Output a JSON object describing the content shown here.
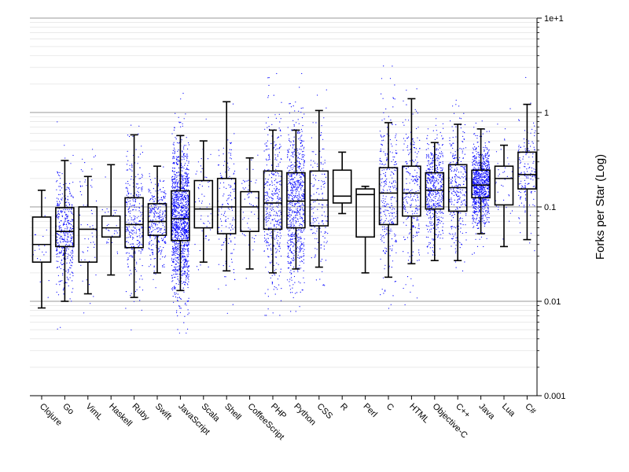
{
  "chart_data": {
    "type": "box",
    "ylabel": "Forks per Star (Log)",
    "y_scale": "log",
    "ylim": [
      0.001,
      10
    ],
    "y_ticks": [
      {
        "value": 10,
        "label": "1e+1"
      },
      {
        "value": 1,
        "label": "1"
      },
      {
        "value": 0.1,
        "label": "0.1"
      },
      {
        "value": 0.01,
        "label": "0.01"
      },
      {
        "value": 0.001,
        "label": "0.001"
      }
    ],
    "y_axis_position": "right",
    "grid": true,
    "point_color": "#0000ff",
    "categories": [
      "Clojure",
      "Go",
      "VimL",
      "Haskell",
      "Ruby",
      "Swift",
      "JavaScript",
      "Scala",
      "Shell",
      "CoffeeScript",
      "PHP",
      "Python",
      "CSS",
      "R",
      "Perl",
      "C",
      "HTML",
      "Objective-C",
      "C++",
      "Java",
      "Lua",
      "C#"
    ],
    "series": [
      {
        "category": "Clojure",
        "whisker_low": 0.0085,
        "q1": 0.026,
        "median": 0.04,
        "q3": 0.078,
        "whisker_high": 0.15,
        "n_points": 20
      },
      {
        "category": "Go",
        "whisker_low": 0.01,
        "q1": 0.038,
        "median": 0.055,
        "q3": 0.098,
        "whisker_high": 0.31,
        "n_points": 400
      },
      {
        "category": "VimL",
        "whisker_low": 0.012,
        "q1": 0.026,
        "median": 0.058,
        "q3": 0.1,
        "whisker_high": 0.21,
        "n_points": 60
      },
      {
        "category": "Haskell",
        "whisker_low": 0.019,
        "q1": 0.048,
        "median": 0.06,
        "q3": 0.08,
        "whisker_high": 0.28,
        "n_points": 30
      },
      {
        "category": "Ruby",
        "whisker_low": 0.011,
        "q1": 0.037,
        "median": 0.065,
        "q3": 0.125,
        "whisker_high": 0.58,
        "n_points": 300
      },
      {
        "category": "Swift",
        "whisker_low": 0.02,
        "q1": 0.05,
        "median": 0.07,
        "q3": 0.108,
        "whisker_high": 0.27,
        "n_points": 300
      },
      {
        "category": "JavaScript",
        "whisker_low": 0.013,
        "q1": 0.044,
        "median": 0.075,
        "q3": 0.148,
        "whisker_high": 0.57,
        "n_points": 1300
      },
      {
        "category": "Scala",
        "whisker_low": 0.026,
        "q1": 0.06,
        "median": 0.095,
        "q3": 0.19,
        "whisker_high": 0.5,
        "n_points": 60
      },
      {
        "category": "Shell",
        "whisker_low": 0.021,
        "q1": 0.052,
        "median": 0.1,
        "q3": 0.2,
        "whisker_high": 1.3,
        "n_points": 150
      },
      {
        "category": "CoffeeScript",
        "whisker_low": 0.022,
        "q1": 0.055,
        "median": 0.1,
        "q3": 0.145,
        "whisker_high": 0.33,
        "n_points": 60
      },
      {
        "category": "PHP",
        "whisker_low": 0.02,
        "q1": 0.058,
        "median": 0.11,
        "q3": 0.24,
        "whisker_high": 0.65,
        "n_points": 400
      },
      {
        "category": "Python",
        "whisker_low": 0.022,
        "q1": 0.06,
        "median": 0.115,
        "q3": 0.23,
        "whisker_high": 0.65,
        "n_points": 700
      },
      {
        "category": "CSS",
        "whisker_low": 0.023,
        "q1": 0.063,
        "median": 0.118,
        "q3": 0.24,
        "whisker_high": 1.05,
        "n_points": 150
      },
      {
        "category": "R",
        "whisker_low": 0.085,
        "q1": 0.11,
        "median": 0.13,
        "q3": 0.245,
        "whisker_high": 0.38,
        "n_points": 0
      },
      {
        "category": "Perl",
        "whisker_low": 0.02,
        "q1": 0.048,
        "median": 0.135,
        "q3": 0.155,
        "whisker_high": 0.165,
        "n_points": 0
      },
      {
        "category": "C",
        "whisker_low": 0.018,
        "q1": 0.065,
        "median": 0.14,
        "q3": 0.26,
        "whisker_high": 0.78,
        "n_points": 300
      },
      {
        "category": "HTML",
        "whisker_low": 0.025,
        "q1": 0.08,
        "median": 0.14,
        "q3": 0.27,
        "whisker_high": 1.4,
        "n_points": 250
      },
      {
        "category": "Objective-C",
        "whisker_low": 0.027,
        "q1": 0.095,
        "median": 0.15,
        "q3": 0.23,
        "whisker_high": 0.48,
        "n_points": 500
      },
      {
        "category": "C++",
        "whisker_low": 0.027,
        "q1": 0.09,
        "median": 0.16,
        "q3": 0.28,
        "whisker_high": 0.75,
        "n_points": 300
      },
      {
        "category": "Java",
        "whisker_low": 0.052,
        "q1": 0.125,
        "median": 0.17,
        "q3": 0.245,
        "whisker_high": 0.67,
        "n_points": 900
      },
      {
        "category": "Lua",
        "whisker_low": 0.038,
        "q1": 0.105,
        "median": 0.2,
        "q3": 0.27,
        "whisker_high": 0.45,
        "n_points": 40
      },
      {
        "category": "C#",
        "whisker_low": 0.045,
        "q1": 0.155,
        "median": 0.22,
        "q3": 0.38,
        "whisker_high": 1.22,
        "n_points": 150
      }
    ]
  }
}
